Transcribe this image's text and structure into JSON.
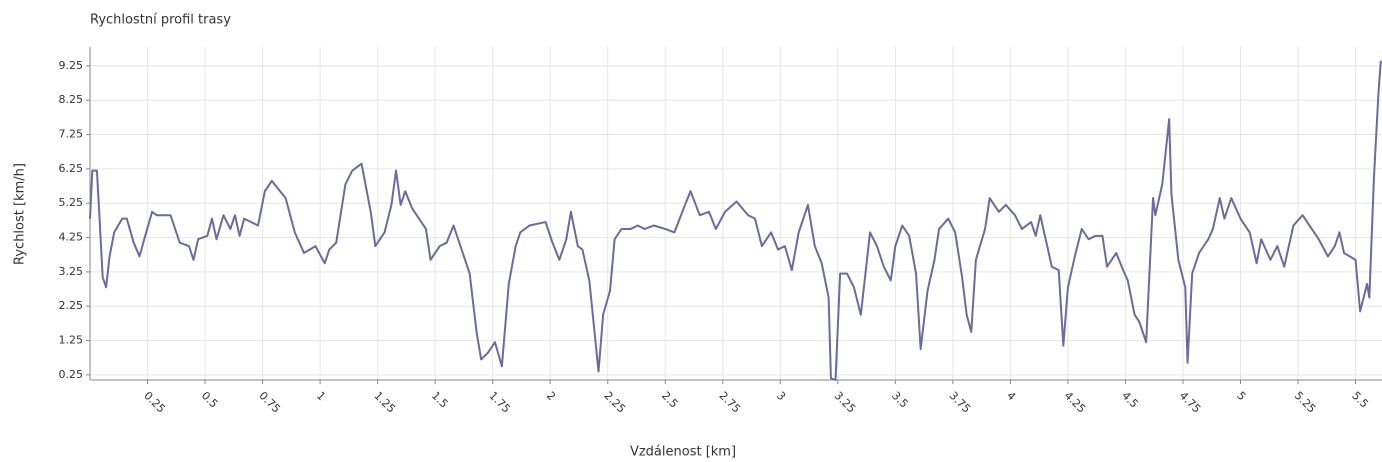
{
  "chart_data": {
    "type": "line",
    "title": "Rychlostní profil trasy",
    "xlabel": "Vzdálenost [km]",
    "ylabel": "Rychlost [km/h]",
    "xlim": [
      0,
      5.615
    ],
    "ylim": [
      0.1,
      9.8
    ],
    "xticks": [
      0.25,
      0.5,
      0.75,
      1,
      1.25,
      1.5,
      1.75,
      2,
      2.25,
      2.5,
      2.75,
      3,
      3.25,
      3.5,
      3.75,
      4,
      4.25,
      4.5,
      4.75,
      5,
      5.25,
      5.5
    ],
    "yticks": [
      0.25,
      1.25,
      2.25,
      3.25,
      4.25,
      5.25,
      6.25,
      7.25,
      8.25,
      9.25
    ],
    "grid": true,
    "series": [
      {
        "color": "#6b6b9c",
        "x": [
          0,
          0.01,
          0.03,
          0.04,
          0.055,
          0.07,
          0.085,
          0.105,
          0.14,
          0.16,
          0.19,
          0.215,
          0.24,
          0.27,
          0.29,
          0.35,
          0.39,
          0.43,
          0.45,
          0.47,
          0.51,
          0.53,
          0.55,
          0.58,
          0.61,
          0.63,
          0.65,
          0.67,
          0.73,
          0.76,
          0.79,
          0.85,
          0.89,
          0.93,
          0.98,
          1.02,
          1.04,
          1.07,
          1.11,
          1.14,
          1.18,
          1.22,
          1.24,
          1.28,
          1.31,
          1.33,
          1.35,
          1.37,
          1.4,
          1.43,
          1.46,
          1.48,
          1.52,
          1.55,
          1.58,
          1.62,
          1.65,
          1.68,
          1.7,
          1.73,
          1.76,
          1.79,
          1.82,
          1.85,
          1.87,
          1.91,
          1.98,
          2.01,
          2.04,
          2.07,
          2.09,
          2.12,
          2.14,
          2.17,
          2.21,
          2.23,
          2.26,
          2.28,
          2.31,
          2.35,
          2.38,
          2.41,
          2.45,
          2.5,
          2.54,
          2.58,
          2.61,
          2.65,
          2.69,
          2.72,
          2.76,
          2.81,
          2.86,
          2.89,
          2.92,
          2.96,
          2.99,
          3.02,
          3.05,
          3.08,
          3.12,
          3.15,
          3.18,
          3.21,
          3.22,
          3.24,
          3.26,
          3.29,
          3.32,
          3.35,
          3.39,
          3.42,
          3.45,
          3.48,
          3.5,
          3.53,
          3.56,
          3.59,
          3.61,
          3.64,
          3.67,
          3.69,
          3.73,
          3.76,
          3.79,
          3.81,
          3.83,
          3.85,
          3.89,
          3.91,
          3.95,
          3.98,
          4.02,
          4.05,
          4.09,
          4.11,
          4.13,
          4.16,
          4.18,
          4.21,
          4.23,
          4.25,
          4.28,
          4.31,
          4.34,
          4.37,
          4.4,
          4.42,
          4.46,
          4.49,
          4.51,
          4.54,
          4.56,
          4.59,
          4.62,
          4.63,
          4.66,
          4.69,
          4.7,
          4.73,
          4.76,
          4.77,
          4.79,
          4.82,
          4.86,
          4.88,
          4.91,
          4.93,
          4.96,
          5.0,
          5.04,
          5.07,
          5.09,
          5.13,
          5.16,
          5.19,
          5.23,
          5.27,
          5.3,
          5.34,
          5.38,
          5.41,
          5.43,
          5.45,
          5.5,
          5.52,
          5.55,
          5.56,
          5.58,
          5.6,
          5.61
        ],
        "values": [
          4.8,
          6.2,
          6.2,
          5.0,
          3.1,
          2.8,
          3.7,
          4.4,
          4.8,
          4.8,
          4.1,
          3.7,
          4.3,
          5.0,
          4.9,
          4.9,
          4.1,
          4.0,
          3.6,
          4.2,
          4.3,
          4.8,
          4.2,
          4.9,
          4.5,
          4.9,
          4.3,
          4.8,
          4.6,
          5.6,
          5.9,
          5.4,
          4.4,
          3.8,
          4.0,
          3.5,
          3.9,
          4.1,
          5.8,
          6.2,
          6.4,
          5.0,
          4.0,
          4.4,
          5.2,
          6.2,
          5.2,
          5.6,
          5.1,
          4.8,
          4.5,
          3.6,
          4.0,
          4.1,
          4.6,
          3.8,
          3.2,
          1.5,
          0.7,
          0.9,
          1.2,
          0.5,
          2.9,
          4.0,
          4.4,
          4.6,
          4.7,
          4.1,
          3.6,
          4.2,
          5.0,
          4.0,
          3.9,
          3.0,
          0.35,
          2.0,
          2.7,
          4.2,
          4.5,
          4.5,
          4.6,
          4.5,
          4.6,
          4.5,
          4.4,
          5.1,
          5.6,
          4.9,
          5.0,
          4.5,
          5.0,
          5.3,
          4.9,
          4.8,
          4.0,
          4.4,
          3.9,
          4.0,
          3.3,
          4.4,
          5.2,
          4.0,
          3.5,
          2.5,
          0.15,
          0.1,
          3.2,
          3.2,
          2.8,
          2.0,
          4.4,
          4.0,
          3.4,
          3.0,
          4.0,
          4.6,
          4.3,
          3.2,
          1.0,
          2.7,
          3.6,
          4.5,
          4.8,
          4.4,
          3.1,
          2.0,
          1.5,
          3.6,
          4.5,
          5.4,
          5.0,
          5.2,
          4.9,
          4.5,
          4.7,
          4.3,
          4.9,
          4.0,
          3.4,
          3.3,
          1.1,
          2.8,
          3.7,
          4.5,
          4.2,
          4.3,
          4.3,
          3.4,
          3.8,
          3.3,
          3.0,
          2.0,
          1.8,
          1.2,
          5.4,
          4.9,
          5.8,
          7.7,
          5.5,
          3.6,
          2.8,
          0.6,
          3.2,
          3.8,
          4.2,
          4.5,
          5.4,
          4.8,
          5.4,
          4.8,
          4.4,
          3.5,
          4.2,
          3.6,
          4.0,
          3.4,
          4.6,
          4.9,
          4.6,
          4.2,
          3.7,
          4.0,
          4.4,
          3.8,
          3.6,
          2.1,
          2.9,
          2.5,
          6.0,
          8.5,
          9.4
        ]
      }
    ]
  }
}
